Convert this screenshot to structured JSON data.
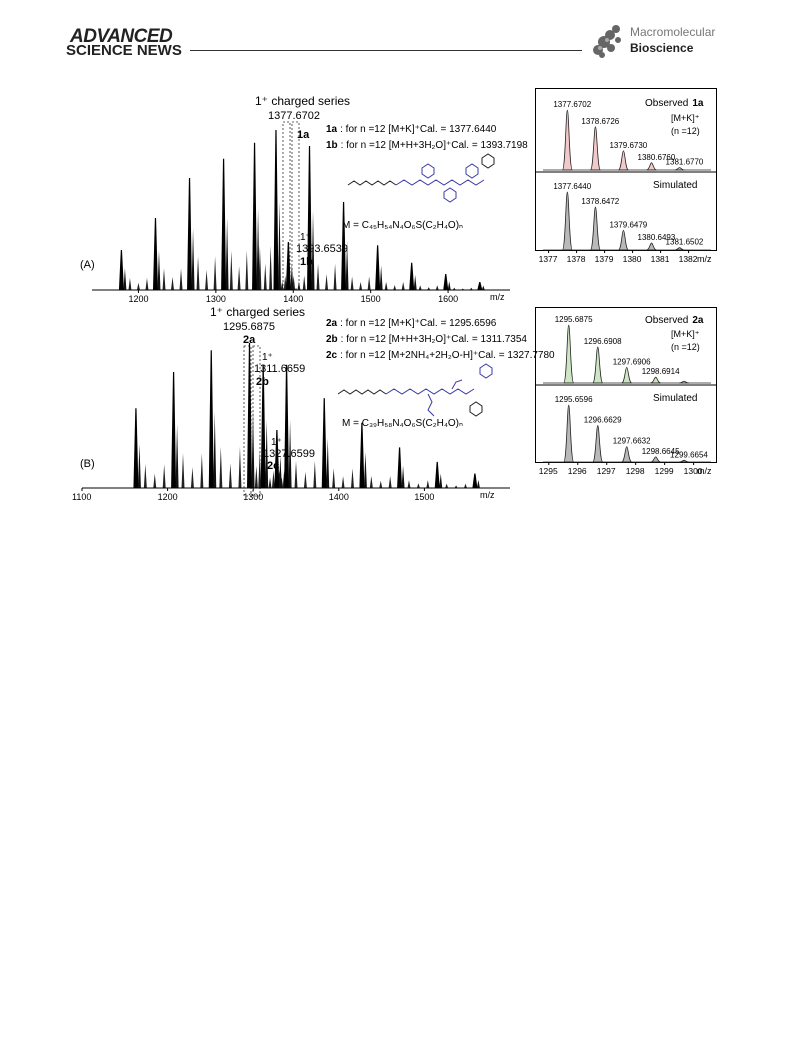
{
  "header": {
    "brand_line1": "ADVANCED",
    "brand_line2": "SCIENCE NEWS",
    "journal_line1": "Macromolecular",
    "journal_line2": "Bioscience"
  },
  "figure": {
    "panel_a": {
      "label": "(A)",
      "series_title": "1⁺ charged series",
      "main_peak_label": "1377.6702",
      "peak_1a": "1a",
      "peak_1b_charge": "1⁺",
      "peak_1b_value": "1393.6539",
      "peak_1b": "1b",
      "ann_1a_id": "1a",
      "ann_1a_text": ": for n =12 [M+K]⁺Cal. = 1377.6440",
      "ann_1b_id": "1b",
      "ann_1b_text": ": for n =12 [M+H+3H₂O]⁺Cal. = 1393.7198",
      "formula": "M = C₄₅H₅₄N₄O₆S(C₂H₄O)ₙ",
      "x_ticks": [
        "1200",
        "1300",
        "1400",
        "1500",
        "1600"
      ],
      "x_unit": "m/z"
    },
    "panel_b": {
      "label": "(B)",
      "series_title": "1⁺ charged series",
      "main_peak_label": "1295.6875",
      "peak_2a": "2a",
      "peak_2b_charge": "1⁺",
      "peak_2b_value": "1311.6659",
      "peak_2b": "2b",
      "peak_2c_charge": "1⁺",
      "peak_2c_value": "1327.6599",
      "peak_2c": "2c",
      "ann_2a_id": "2a",
      "ann_2a_text": ": for n =12 [M+K]⁺Cal. = 1295.6596",
      "ann_2b_id": "2b",
      "ann_2b_text": ": for n =12 [M+H+3H₂O]⁺Cal. = 1311.7354",
      "ann_2c_id": "2c",
      "ann_2c_text": ": for n =12 [M+2NH₄+2H₂O-H]⁺Cal. = 1327.7780",
      "formula": "M = C₃₉H₅₈N₄O₆S(C₂H₄O)ₙ",
      "x_ticks": [
        "1100",
        "1200",
        "1300",
        "1400",
        "1500"
      ],
      "x_unit": "m/z"
    },
    "inset_a": {
      "observed_label": "Observed",
      "observed_id": "1a",
      "ion": "[M+K]⁺",
      "n_label": "(n =12)",
      "simulated_label": "Simulated",
      "observed_peaks": [
        "1377.6702",
        "1378.6726",
        "1379.6730",
        "1380.6760",
        "1381.6770"
      ],
      "simulated_peaks": [
        "1377.6440",
        "1378.6472",
        "1379.6479",
        "1380.6493",
        "1381.6502"
      ],
      "x_ticks": [
        "1377",
        "1378",
        "1379",
        "1380",
        "1381",
        "1382"
      ],
      "x_unit": "m/z",
      "fill_color": "#f2c8c8"
    },
    "inset_b": {
      "observed_label": "Observed",
      "observed_id": "2a",
      "ion": "[M+K]⁺",
      "n_label": "(n =12)",
      "simulated_label": "Simulated",
      "observed_peaks": [
        "1295.6875",
        "1296.6908",
        "1297.6906",
        "1298.6914"
      ],
      "simulated_peaks": [
        "1295.6596",
        "1296.6629",
        "1297.6632",
        "1298.6645",
        "1299.6654"
      ],
      "x_ticks": [
        "1295",
        "1296",
        "1297",
        "1298",
        "1299",
        "1300"
      ],
      "x_unit": "m/z",
      "fill_color": "#cfe6c5"
    }
  },
  "chart_data": [
    {
      "type": "line",
      "title": "1⁺ charged series",
      "xlabel": "m/z",
      "ylabel": "",
      "xlim": [
        1140,
        1680
      ],
      "peaks_x": [
        1178,
        1222,
        1266,
        1310,
        1350,
        1377.67,
        1393.65,
        1421,
        1465,
        1509,
        1553,
        1597,
        1641
      ],
      "peaks_y": [
        0.25,
        0.45,
        0.7,
        0.82,
        0.92,
        1.0,
        0.3,
        0.9,
        0.55,
        0.28,
        0.17,
        0.1,
        0.05
      ]
    },
    {
      "type": "line",
      "title": "1⁺ charged series",
      "xlabel": "m/z",
      "ylabel": "",
      "xlim": [
        1100,
        1600
      ],
      "peaks_x": [
        1163,
        1207,
        1251,
        1295.69,
        1311.67,
        1327.66,
        1339,
        1383,
        1427,
        1471,
        1515,
        1559
      ],
      "peaks_y": [
        0.55,
        0.8,
        0.95,
        1.0,
        0.85,
        0.4,
        0.85,
        0.62,
        0.45,
        0.28,
        0.18,
        0.1
      ]
    },
    {
      "type": "line",
      "title": "Observed 1a / Simulated",
      "xlabel": "m/z",
      "x": [
        1377.6702,
        1378.6726,
        1379.673,
        1380.676,
        1381.677
      ],
      "series": [
        {
          "name": "Observed",
          "values": [
            1.0,
            0.72,
            0.32,
            0.12,
            0.04
          ]
        },
        {
          "name": "Simulated",
          "values": [
            1.0,
            0.74,
            0.34,
            0.12,
            0.04
          ]
        }
      ],
      "xlim": [
        1376.8,
        1382.8
      ]
    },
    {
      "type": "line",
      "title": "Observed 2a / Simulated",
      "xlabel": "m/z",
      "x": [
        1295.6875,
        1296.6908,
        1297.6906,
        1298.6914,
        1299.67
      ],
      "series": [
        {
          "name": "Observed",
          "values": [
            1.0,
            0.62,
            0.27,
            0.1,
            0.03
          ]
        },
        {
          "name": "Simulated",
          "values": [
            1.0,
            0.64,
            0.27,
            0.09,
            0.03
          ]
        }
      ],
      "xlim": [
        1294.8,
        1300.6
      ]
    }
  ]
}
